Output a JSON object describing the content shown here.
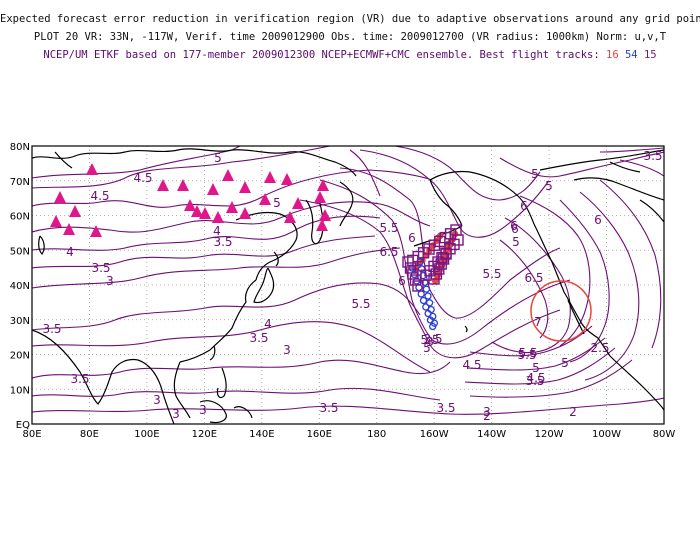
{
  "header": {
    "line1": "Expected forecast error reduction in verification region (VR) due to adaptive observations around any grid point.",
    "line2": "PLOT 20 VR: 33N, -117W, Verif. time 2009012900 Obs. time: 2009012700 (VR radius: 1000km) Norm: u,v,T",
    "line3_prefix": "NCEP/UM ETKF based on 177-member 2009012300 NCEP+ECMWF+CMC ensemble. Best flight tracks:",
    "track_a": "16",
    "track_b": "54",
    "track_c": "15"
  },
  "colors": {
    "contour": "#6e0f74",
    "track_a": "#e8453c",
    "track_b": "#2a3fd0",
    "track_c": "#7a1680",
    "stations": "#e0168a",
    "verification_circle": "#e8453c"
  },
  "axes": {
    "lon_labels": [
      "80E",
      "80E",
      "100E",
      "120E",
      "140E",
      "160E",
      "180",
      "160W",
      "140W",
      "120W",
      "100W",
      "80W"
    ],
    "lat_labels": [
      "EQ",
      "10N",
      "20N",
      "30N",
      "40N",
      "50N",
      "60N",
      "70N",
      "80N"
    ]
  },
  "contour_labels": [
    "4.5",
    "4.5",
    "5",
    "5",
    "4",
    "3.5",
    "3.5",
    "4",
    "3",
    "3.5",
    "3.5",
    "4",
    "3.5",
    "3",
    "3",
    "3",
    "3",
    "3.5",
    "3.5",
    "3",
    "6",
    "5.5",
    "6.5",
    "6",
    "5.5",
    "5.5",
    "6",
    "5",
    "5",
    "5",
    "4.5",
    "5.5",
    "6.5",
    "7",
    "5.5",
    "5",
    "4.5",
    "3.5",
    "2.5",
    "2",
    "3.5",
    "5",
    "3.5",
    "2",
    "5.5",
    "5",
    "6",
    "6",
    "3",
    "6",
    "3.5"
  ],
  "verification_region": {
    "lat": 33,
    "lon": -117,
    "radius_km": 1000
  },
  "icons": {
    "stations": "triangle-marker",
    "track_a": "filled-circle-marker",
    "track_b": "open-circle-marker",
    "track_c": "open-square-marker"
  }
}
